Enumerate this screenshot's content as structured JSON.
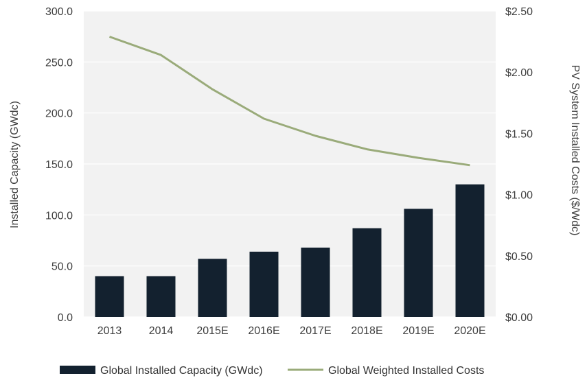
{
  "chart_data": {
    "type": "bar",
    "categories": [
      "2013",
      "2014",
      "2015E",
      "2016E",
      "2017E",
      "2018E",
      "2019E",
      "2020E"
    ],
    "series": [
      {
        "name": "Global Installed Capacity (GWdc)",
        "type": "bar",
        "axis": "left",
        "values": [
          40,
          40,
          57,
          64,
          68,
          87,
          106,
          130
        ]
      },
      {
        "name": "Global Weighted Installed Costs",
        "type": "line",
        "axis": "right",
        "values": [
          2.29,
          2.14,
          1.86,
          1.62,
          1.48,
          1.37,
          1.3,
          1.24
        ]
      }
    ],
    "ylabel": "Installed Capacity (GWdc)",
    "y2label": "PV System Installed Costs ($/Wdc)",
    "ylim": [
      0,
      300
    ],
    "y2lim": [
      0,
      2.5
    ],
    "yticks": [
      "0.0",
      "50.0",
      "100.0",
      "150.0",
      "200.0",
      "250.0",
      "300.0"
    ],
    "y2ticks": [
      "$0.00",
      "$0.50",
      "$1.00",
      "$1.50",
      "$2.00",
      "$2.50"
    ],
    "legend_position": "bottom",
    "grid": true,
    "colors": {
      "bar": "#13212f",
      "line": "#9aab7a",
      "plot_bg": "#f2f2f2",
      "grid": "#ffffff"
    }
  }
}
